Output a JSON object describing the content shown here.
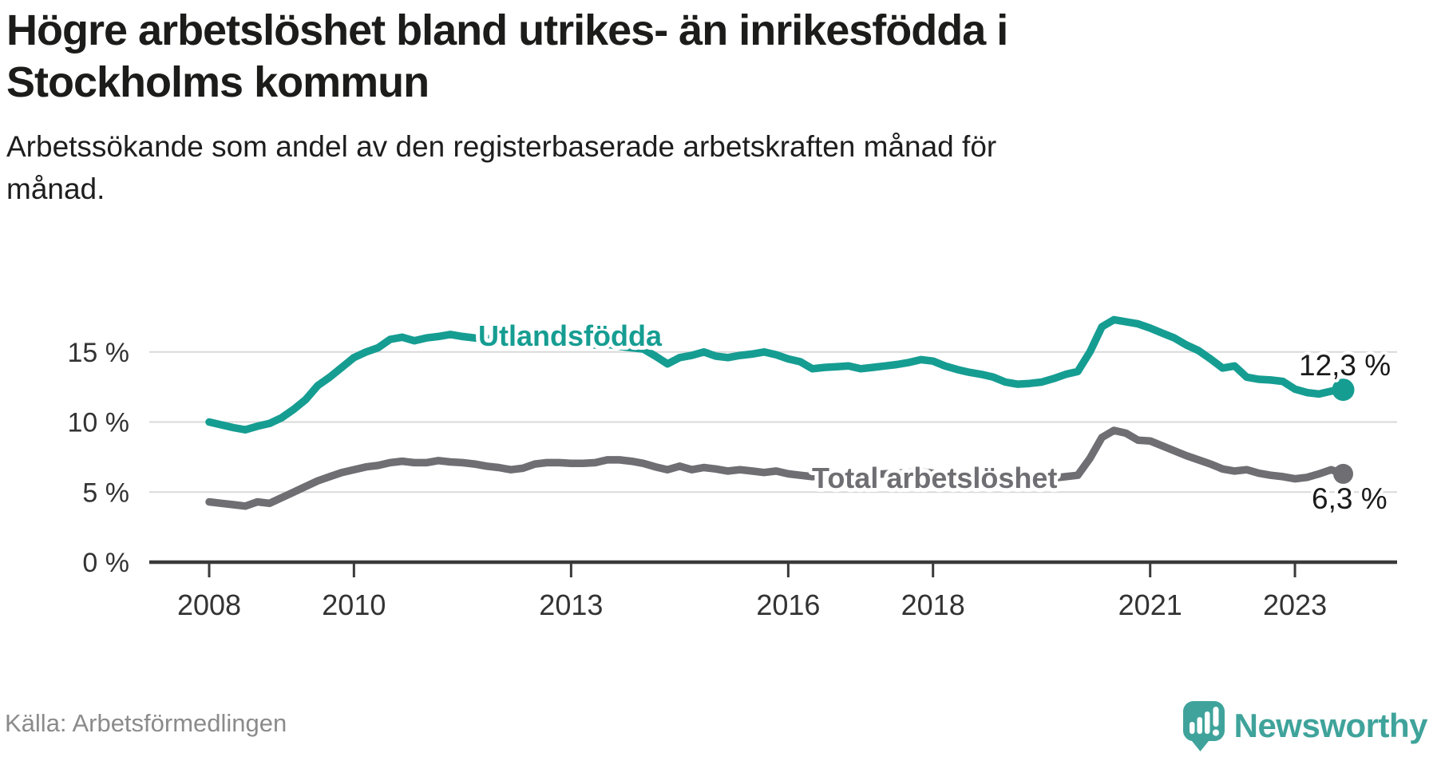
{
  "header": {
    "title": "Högre arbetslöshet bland utrikes- än inrikesfödda i\nStockholms kommun",
    "subtitle": "Arbetssökande som andel av den registerbaserade arbetskraften månad för\nmånad."
  },
  "footer": {
    "source": "Källa: Arbetsförmedlingen",
    "brand": "Newsworthy",
    "logo_icon": "newsworthy-speech-bubble-bar-chart-icon"
  },
  "colors": {
    "foreign_born_line": "#169d92",
    "total_line": "#6e6e73",
    "grid": "#d9d9d9",
    "axis": "#3a3a3a",
    "value_label": "#1a1a1a",
    "brand": "#3fa39b",
    "muted_text": "#8b8b8b"
  },
  "chart_data": {
    "type": "line",
    "title": "Högre arbetslöshet bland utrikes- än inrikesfödda i Stockholms kommun",
    "subtitle": "Arbetssökande som andel av den registerbaserade arbetskraften månad för månad.",
    "unit": "%",
    "grid": true,
    "legend_position": "inline-labels",
    "x_axis": {
      "ticks": [
        2008,
        2010,
        2013,
        2016,
        2018,
        2021,
        2023
      ],
      "range_years": [
        2007.2,
        2024.4
      ]
    },
    "y_axis": {
      "range": [
        0,
        18.5
      ],
      "ticks": [
        {
          "value": 15,
          "label": "15 %"
        },
        {
          "value": 10,
          "label": "10 %"
        },
        {
          "value": 5,
          "label": "5 %"
        },
        {
          "value": 0,
          "label": "0 %"
        }
      ]
    },
    "series": [
      {
        "name": "Utlandsfödda",
        "color": "#169d92",
        "end_label": "12,3 %",
        "end_value": 12.3,
        "start_year": 2008.0,
        "step_months": 2,
        "values": [
          10.0,
          9.8,
          9.6,
          9.45,
          9.7,
          9.9,
          10.3,
          10.9,
          11.6,
          12.6,
          13.2,
          13.9,
          14.6,
          15.0,
          15.3,
          15.9,
          16.05,
          15.8,
          16.0,
          16.1,
          16.25,
          16.1,
          16.0,
          15.95,
          15.9,
          15.7,
          15.6,
          16.0,
          15.95,
          15.85,
          15.75,
          15.6,
          15.5,
          15.55,
          15.4,
          15.3,
          15.2,
          14.7,
          14.15,
          14.6,
          14.75,
          15.0,
          14.7,
          14.6,
          14.75,
          14.85,
          15.0,
          14.8,
          14.5,
          14.3,
          13.8,
          13.9,
          13.95,
          14.0,
          13.8,
          13.9,
          14.0,
          14.1,
          14.25,
          14.45,
          14.35,
          14.0,
          13.75,
          13.55,
          13.4,
          13.2,
          12.85,
          12.7,
          12.75,
          12.85,
          13.1,
          13.4,
          13.6,
          15.0,
          16.8,
          17.3,
          17.15,
          17.0,
          16.7,
          16.35,
          16.0,
          15.5,
          15.1,
          14.5,
          13.85,
          14.0,
          13.2,
          13.05,
          13.0,
          12.9,
          12.35,
          12.1,
          12.0,
          12.2,
          12.3
        ]
      },
      {
        "name": "Total arbetslöshet",
        "color": "#6e6e73",
        "end_label": "6,3 %",
        "end_value": 6.3,
        "start_year": 2008.0,
        "step_months": 2,
        "values": [
          4.3,
          4.2,
          4.1,
          4.0,
          4.3,
          4.2,
          4.6,
          5.0,
          5.4,
          5.8,
          6.1,
          6.4,
          6.6,
          6.8,
          6.9,
          7.1,
          7.2,
          7.1,
          7.1,
          7.25,
          7.15,
          7.1,
          7.0,
          6.85,
          6.75,
          6.6,
          6.7,
          7.0,
          7.1,
          7.1,
          7.05,
          7.05,
          7.1,
          7.3,
          7.3,
          7.2,
          7.05,
          6.8,
          6.6,
          6.85,
          6.6,
          6.75,
          6.65,
          6.5,
          6.6,
          6.5,
          6.4,
          6.5,
          6.3,
          6.2,
          6.1,
          6.2,
          6.25,
          6.3,
          6.2,
          6.25,
          6.3,
          6.35,
          6.4,
          6.45,
          6.35,
          6.2,
          6.1,
          6.0,
          5.95,
          5.9,
          5.8,
          5.75,
          5.8,
          5.9,
          6.0,
          6.1,
          6.2,
          7.4,
          8.9,
          9.4,
          9.2,
          8.7,
          8.65,
          8.3,
          7.95,
          7.6,
          7.3,
          7.0,
          6.65,
          6.5,
          6.6,
          6.35,
          6.2,
          6.1,
          5.95,
          6.05,
          6.3,
          6.6,
          6.3
        ]
      }
    ]
  }
}
